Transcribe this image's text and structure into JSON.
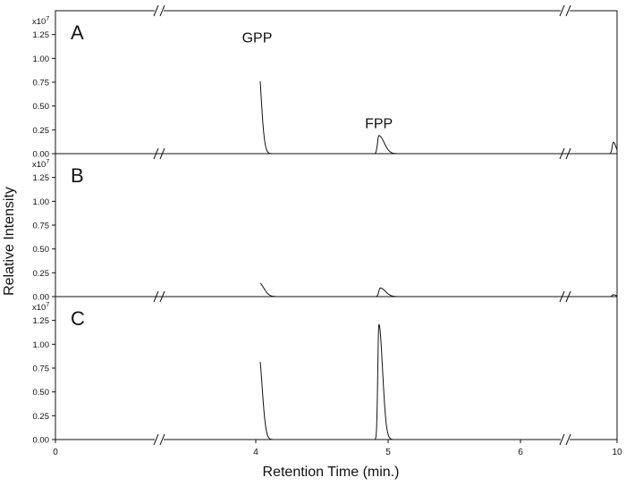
{
  "chart_data": {
    "type": "line",
    "ylabel": "Relative Intensity",
    "xlabel": "Retention Time (min.)",
    "x_ticks": [
      {
        "label": "0",
        "value": 0
      },
      {
        "label": "4",
        "value": 4
      },
      {
        "label": "5",
        "value": 5
      },
      {
        "label": "6",
        "value": 6
      },
      {
        "label": "10",
        "value": 10
      }
    ],
    "x_axis_breaks": [
      "between 0 and 4",
      "between 6 and 10"
    ],
    "multiplier": {
      "base": "x10",
      "exp": "7"
    },
    "ylim": [
      0,
      1.5
    ],
    "y_ticks": [
      {
        "label": "0.00",
        "value": 0
      },
      {
        "label": "0.25",
        "value": 0.25
      },
      {
        "label": "0.50",
        "value": 0.5
      },
      {
        "label": "0.75",
        "value": 0.75
      },
      {
        "label": "1.00",
        "value": 1.0
      },
      {
        "label": "1.25",
        "value": 1.25
      }
    ],
    "panels": [
      {
        "label": "A",
        "peaks": [
          {
            "time": 4.01,
            "height": 1.09,
            "label": "GPP"
          },
          {
            "time": 4.93,
            "height": 0.19,
            "label": "FPP"
          },
          {
            "time": 9.85,
            "height": 0.12,
            "label": ""
          }
        ]
      },
      {
        "label": "B",
        "peaks": [
          {
            "time": 4.02,
            "height": 0.15,
            "label": ""
          },
          {
            "time": 4.94,
            "height": 0.09,
            "label": ""
          },
          {
            "time": 9.85,
            "height": 0.02,
            "label": ""
          }
        ]
      },
      {
        "label": "C",
        "peaks": [
          {
            "time": 4.02,
            "height": 0.92,
            "label": ""
          },
          {
            "time": 4.93,
            "height": 1.21,
            "label": ""
          }
        ]
      }
    ]
  }
}
